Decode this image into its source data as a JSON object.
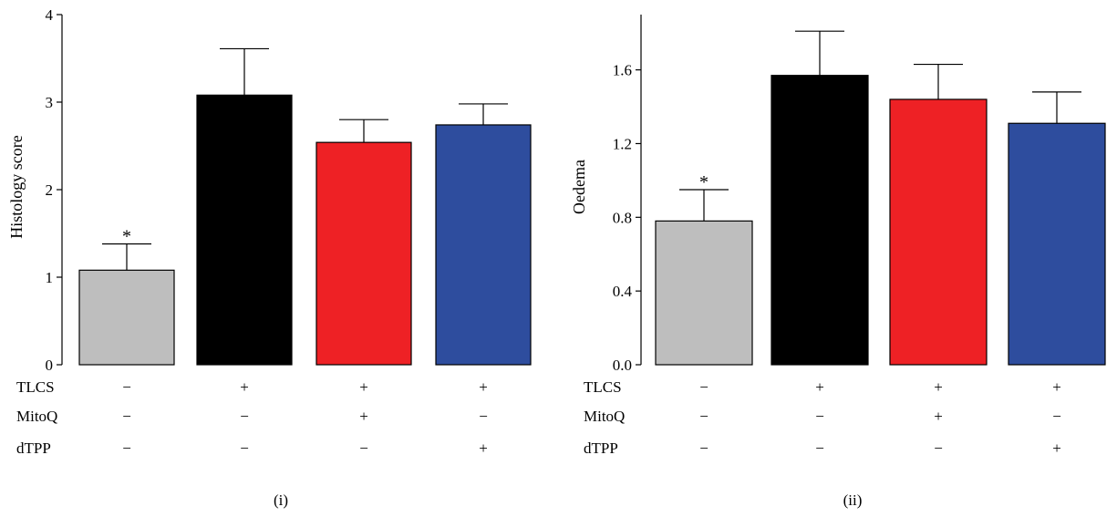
{
  "chart_data": [
    {
      "type": "bar",
      "panel_label": "(i)",
      "ylabel": "Histology score",
      "ylim": [
        0,
        4
      ],
      "yticks": [
        0,
        1,
        2,
        3,
        4
      ],
      "ytick_labels": [
        "0",
        "1",
        "2",
        "3",
        "4"
      ],
      "series": [
        {
          "values": [
            1.08,
            3.08,
            2.54,
            2.74
          ],
          "errors": [
            0.3,
            0.53,
            0.26,
            0.24
          ]
        }
      ],
      "bar_colors": [
        "#bebebe",
        "#000000",
        "#ee2125",
        "#2e4d9e"
      ],
      "significance": [
        "*",
        "",
        "",
        ""
      ],
      "factors": [
        {
          "name": "TLCS",
          "signs": [
            "−",
            "+",
            "+",
            "+"
          ]
        },
        {
          "name": "MitoQ",
          "signs": [
            "−",
            "−",
            "+",
            "−"
          ]
        },
        {
          "name": "dTPP",
          "signs": [
            "−",
            "−",
            "−",
            "+"
          ]
        }
      ]
    },
    {
      "type": "bar",
      "panel_label": "(ii)",
      "ylabel": "Oedema",
      "ylim": [
        0,
        1.9
      ],
      "yticks": [
        0,
        0.4,
        0.8,
        1.2,
        1.6
      ],
      "ytick_labels": [
        "0.0",
        "0.4",
        "0.8",
        "1.2",
        "1.6"
      ],
      "series": [
        {
          "values": [
            0.78,
            1.57,
            1.44,
            1.31
          ],
          "errors": [
            0.17,
            0.24,
            0.19,
            0.17
          ]
        }
      ],
      "bar_colors": [
        "#bebebe",
        "#000000",
        "#ee2125",
        "#2e4d9e"
      ],
      "significance": [
        "*",
        "",
        "",
        ""
      ],
      "factors": [
        {
          "name": "TLCS",
          "signs": [
            "−",
            "+",
            "+",
            "+"
          ]
        },
        {
          "name": "MitoQ",
          "signs": [
            "−",
            "−",
            "+",
            "−"
          ]
        },
        {
          "name": "dTPP",
          "signs": [
            "−",
            "−",
            "−",
            "+"
          ]
        }
      ]
    }
  ]
}
